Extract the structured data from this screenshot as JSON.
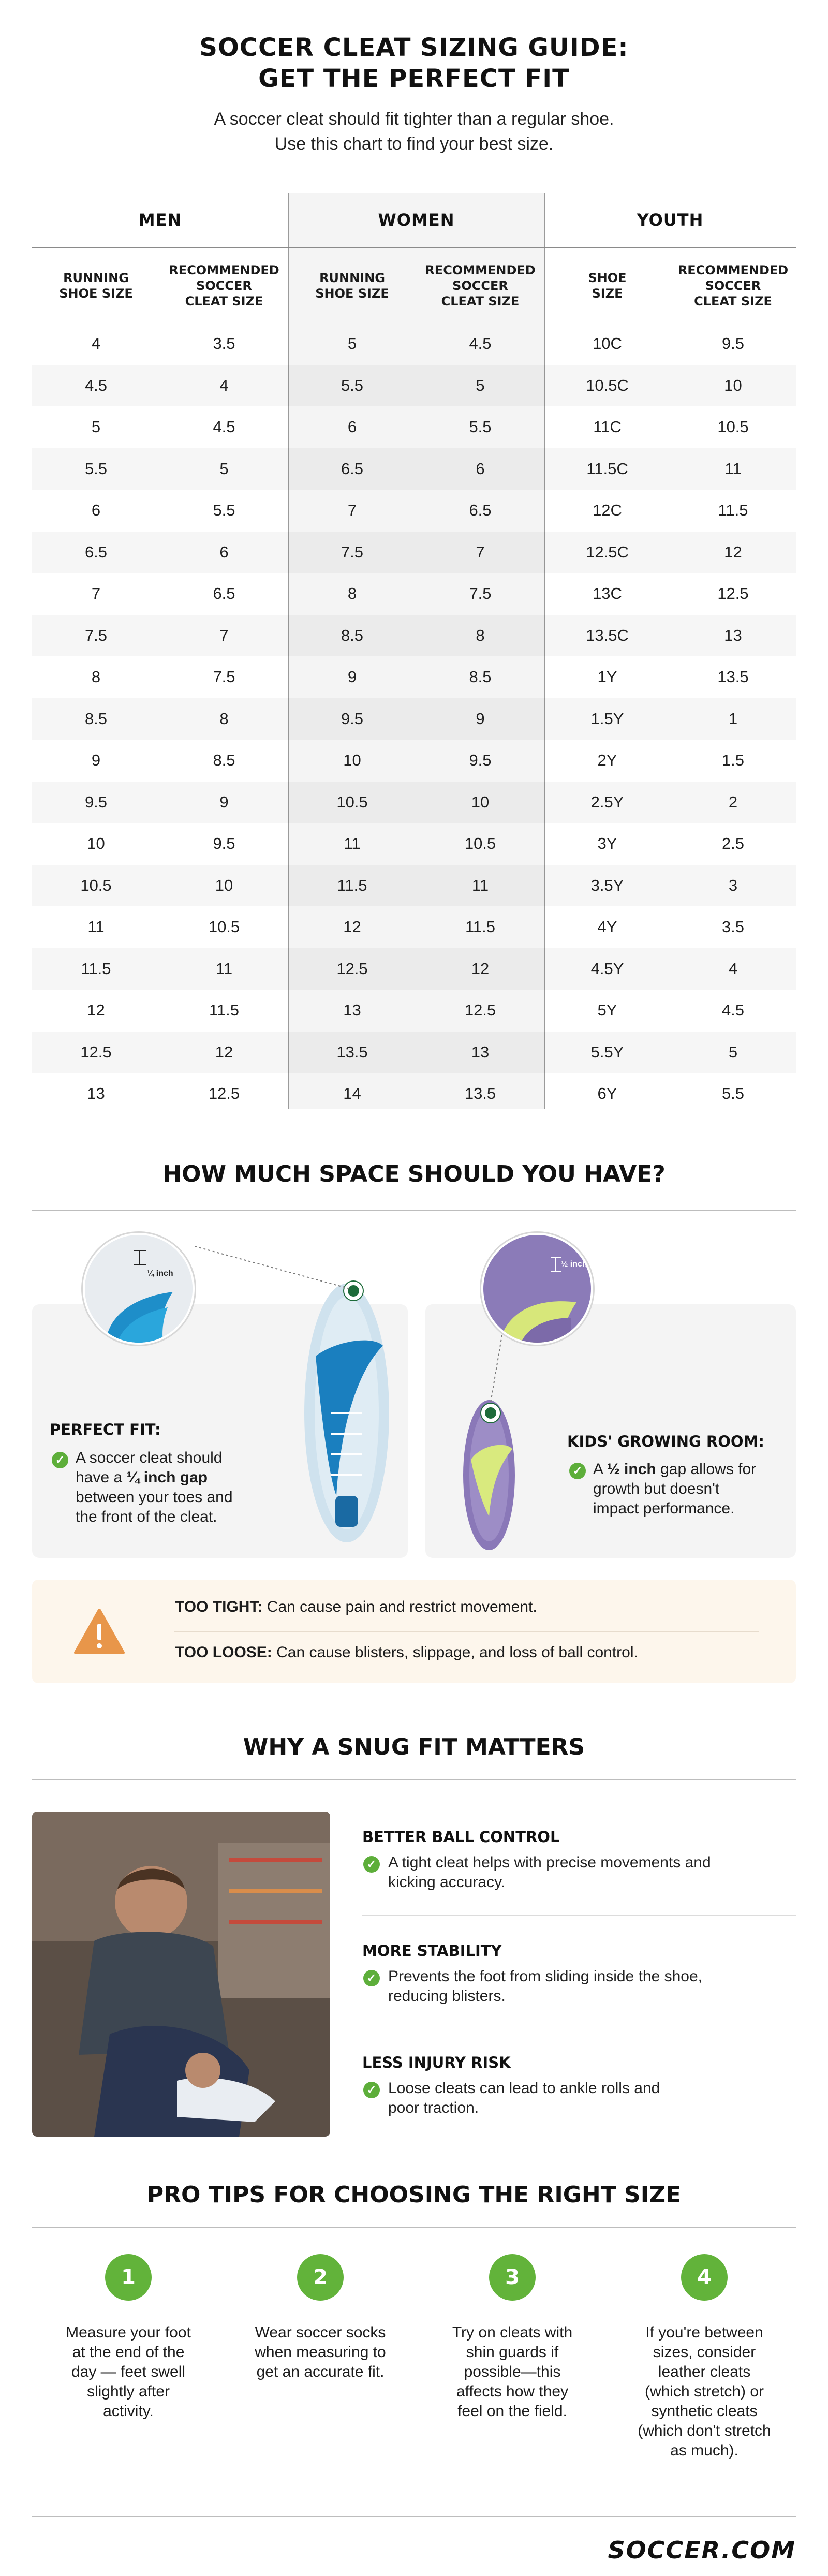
{
  "header": {
    "title_line1": "SOCCER CLEAT SIZING GUIDE:",
    "title_line2": "GET THE PERFECT FIT",
    "subtitle_line1": "A soccer cleat should fit tighter than a regular shoe.",
    "subtitle_line2": "Use this chart to find your best size."
  },
  "size_table": {
    "groups": [
      "MEN",
      "WOMEN",
      "YOUTH"
    ],
    "column_headers": [
      [
        "RUNNING",
        "SHOE SIZE"
      ],
      [
        "RECOMMENDED",
        "SOCCER",
        "CLEAT SIZE"
      ],
      [
        "RUNNING",
        "SHOE SIZE"
      ],
      [
        "RECOMMENDED",
        "SOCCER",
        "CLEAT SIZE"
      ],
      [
        "SHOE",
        "SIZE"
      ],
      [
        "RECOMMENDED",
        "SOCCER",
        "CLEAT SIZE"
      ]
    ],
    "rows": [
      [
        "4",
        "3.5",
        "5",
        "4.5",
        "10C",
        "9.5"
      ],
      [
        "4.5",
        "4",
        "5.5",
        "5",
        "10.5C",
        "10"
      ],
      [
        "5",
        "4.5",
        "6",
        "5.5",
        "11C",
        "10.5"
      ],
      [
        "5.5",
        "5",
        "6.5",
        "6",
        "11.5C",
        "11"
      ],
      [
        "6",
        "5.5",
        "7",
        "6.5",
        "12C",
        "11.5"
      ],
      [
        "6.5",
        "6",
        "7.5",
        "7",
        "12.5C",
        "12"
      ],
      [
        "7",
        "6.5",
        "8",
        "7.5",
        "13C",
        "12.5"
      ],
      [
        "7.5",
        "7",
        "8.5",
        "8",
        "13.5C",
        "13"
      ],
      [
        "8",
        "7.5",
        "9",
        "8.5",
        "1Y",
        "13.5"
      ],
      [
        "8.5",
        "8",
        "9.5",
        "9",
        "1.5Y",
        "1"
      ],
      [
        "9",
        "8.5",
        "10",
        "9.5",
        "2Y",
        "1.5"
      ],
      [
        "9.5",
        "9",
        "10.5",
        "10",
        "2.5Y",
        "2"
      ],
      [
        "10",
        "9.5",
        "11",
        "10.5",
        "3Y",
        "2.5"
      ],
      [
        "10.5",
        "10",
        "11.5",
        "11",
        "3.5Y",
        "3"
      ],
      [
        "11",
        "10.5",
        "12",
        "11.5",
        "4Y",
        "3.5"
      ],
      [
        "11.5",
        "11",
        "12.5",
        "12",
        "4.5Y",
        "4"
      ],
      [
        "12",
        "11.5",
        "13",
        "12.5",
        "5Y",
        "4.5"
      ],
      [
        "12.5",
        "12",
        "13.5",
        "13",
        "5.5Y",
        "5"
      ],
      [
        "13",
        "12.5",
        "14",
        "13.5",
        "6Y",
        "5.5"
      ]
    ]
  },
  "space_section": {
    "heading": "HOW MUCH SPACE SHOULD YOU HAVE?",
    "perfect_fit": {
      "zoom_label": "¼ inch",
      "title": "PERFECT FIT:",
      "text_line1": "A soccer cleat should",
      "text_line2_pre": "have a ",
      "text_line2_bold": "¼ inch gap",
      "text_line3": "between your toes and",
      "text_line4": "the front of the cleat."
    },
    "kids": {
      "zoom_label": "½ inch",
      "title": "KIDS' GROWING ROOM:",
      "text_line1_pre": "A ",
      "text_line1_bold": "½ inch",
      "text_line1_post": " gap allows for",
      "text_line2": "growth but doesn't",
      "text_line3": "impact performance."
    },
    "warnings": {
      "too_tight_label": "TOO TIGHT:",
      "too_tight_text": " Can cause pain and restrict movement.",
      "too_loose_label": "TOO LOOSE:",
      "too_loose_text": " Can cause blisters, slippage, and loss of ball control."
    }
  },
  "why_section": {
    "heading": "WHY A SNUG FIT MATTERS",
    "benefits": [
      {
        "title": "BETTER BALL CONTROL",
        "line1": "A tight cleat helps with precise movements and",
        "line2": "kicking accuracy."
      },
      {
        "title": "MORE STABILITY",
        "line1": "Prevents the foot from sliding inside the shoe,",
        "line2": "reducing blisters."
      },
      {
        "title": "LESS INJURY RISK",
        "line1": "Loose cleats can lead to ankle rolls and",
        "line2": "poor traction."
      }
    ]
  },
  "tips_section": {
    "heading": "PRO TIPS FOR CHOOSING THE RIGHT SIZE",
    "tips": [
      {
        "number": "1",
        "lines": [
          "Measure your foot",
          "at the end of the",
          "day — feet swell",
          "slightly after",
          "activity."
        ]
      },
      {
        "number": "2",
        "lines": [
          "Wear soccer socks",
          "when measuring to",
          "get an accurate fit."
        ]
      },
      {
        "number": "3",
        "lines": [
          "Try on cleats with",
          "shin guards if",
          "possible—this",
          "affects how they",
          "feel on the field."
        ]
      },
      {
        "number": "4",
        "lines": [
          "If you're between",
          "sizes, consider",
          "leather cleats",
          "(which stretch) or",
          "synthetic cleats",
          "(which don't stretch",
          "as much)."
        ]
      }
    ]
  },
  "footer": {
    "logo": "SOCCER.COM"
  },
  "colors": {
    "accent_green": "#62b33a",
    "warning_orange": "#e8964a",
    "dot_green": "#1d6b3a"
  },
  "icons": [
    "check-icon",
    "warning-icon"
  ]
}
